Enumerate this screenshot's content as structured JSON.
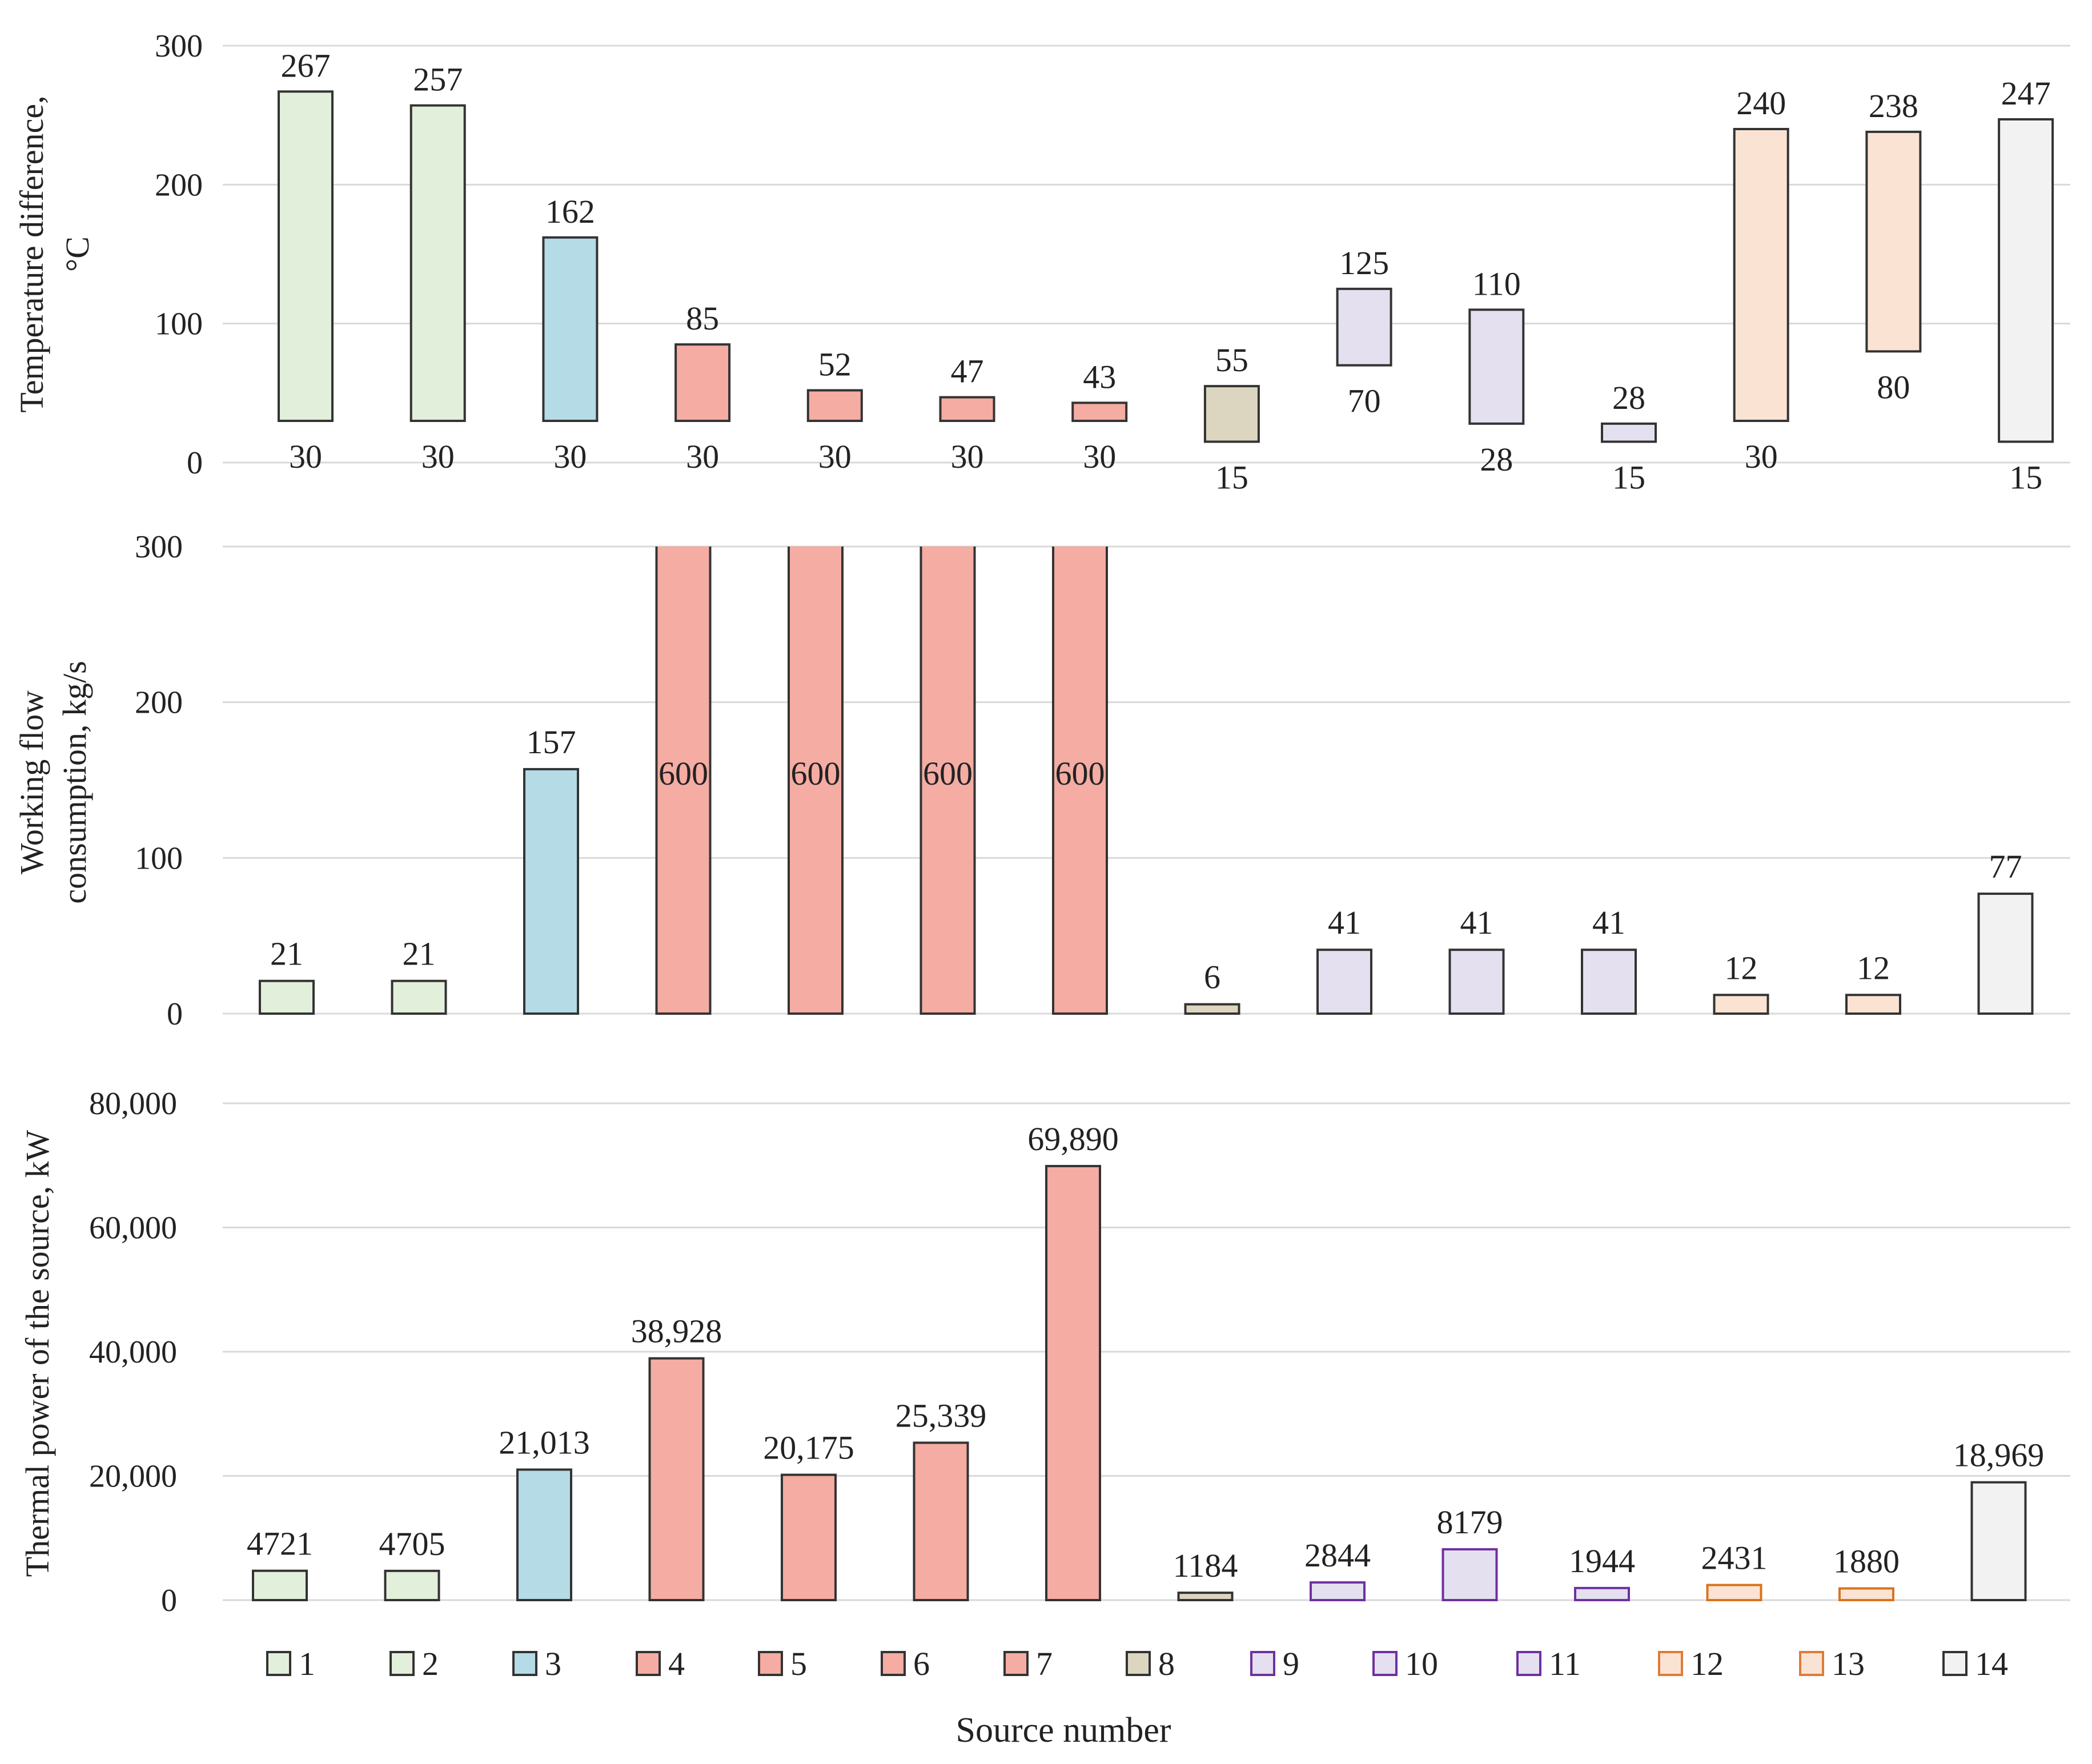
{
  "chart_data": [
    {
      "type": "range-bar",
      "title": "",
      "ylabel": [
        "Temperature difference,",
        "°C"
      ],
      "ylim": [
        0,
        300
      ],
      "yticks": [
        "0",
        "100",
        "200",
        "300"
      ],
      "categories": [
        "1",
        "2",
        "3",
        "4",
        "5",
        "6",
        "7",
        "8",
        "9",
        "10",
        "11",
        "12",
        "13",
        "14"
      ],
      "high": [
        267,
        257,
        162,
        85,
        52,
        47,
        43,
        55,
        125,
        110,
        28,
        240,
        238,
        247
      ],
      "low": [
        30,
        30,
        30,
        30,
        30,
        30,
        30,
        15,
        70,
        28,
        15,
        30,
        80,
        15
      ],
      "high_labels": [
        "267",
        "257",
        "162",
        "85",
        "52",
        "47",
        "43",
        "55",
        "125",
        "110",
        "28",
        "240",
        "238",
        "247"
      ],
      "low_labels": [
        "30",
        "30",
        "30",
        "30",
        "30",
        "30",
        "30",
        "15",
        "70",
        "28",
        "15",
        "30",
        "80",
        "15"
      ]
    },
    {
      "type": "bar",
      "title": "",
      "ylabel": [
        "Working flow",
        "consumption, kg/s"
      ],
      "ylim": [
        0,
        300
      ],
      "yticks": [
        "0",
        "100",
        "200",
        "300"
      ],
      "categories": [
        "1",
        "2",
        "3",
        "4",
        "5",
        "6",
        "7",
        "8",
        "9",
        "10",
        "11",
        "12",
        "13",
        "14"
      ],
      "values": [
        21,
        21,
        157,
        600,
        600,
        600,
        600,
        6,
        41,
        41,
        41,
        12,
        12,
        77
      ],
      "value_labels": [
        "21",
        "21",
        "157",
        "600",
        "600",
        "600",
        "600",
        "6",
        "41",
        "41",
        "41",
        "12",
        "12",
        "77"
      ]
    },
    {
      "type": "bar",
      "title": "",
      "ylabel": [
        "Thermal power of the source, kW"
      ],
      "ylim": [
        0,
        80000
      ],
      "yticks": [
        "0",
        "20,000",
        "40,000",
        "60,000",
        "80,000"
      ],
      "categories": [
        "1",
        "2",
        "3",
        "4",
        "5",
        "6",
        "7",
        "8",
        "9",
        "10",
        "11",
        "12",
        "13",
        "14"
      ],
      "values": [
        4721,
        4705,
        21013,
        38928,
        20175,
        25339,
        69890,
        1184,
        2844,
        8179,
        1944,
        2431,
        1880,
        18969
      ],
      "value_labels": [
        "4721",
        "4705",
        "21,013",
        "38,928",
        "20,175",
        "25,339",
        "69,890",
        "1184",
        "2844",
        "8179",
        "1944",
        "2431",
        "1880",
        "18,969"
      ]
    }
  ],
  "legend": {
    "labels": [
      "1",
      "2",
      "3",
      "4",
      "5",
      "6",
      "7",
      "8",
      "9",
      "10",
      "11",
      "12",
      "13",
      "14"
    ]
  },
  "xlabel": "Source number",
  "colors": {
    "fills": [
      "#e2efda",
      "#e2efda",
      "#b4dbe6",
      "#f4aca3",
      "#f4aca3",
      "#f4aca3",
      "#f4aca3",
      "#dcd6c0",
      "#e4e0ef",
      "#e4e0ef",
      "#e4e0ef",
      "#fbe3d3",
      "#fbe3d3",
      "#f2f2f2"
    ],
    "bottom_strokes": [
      "#333333",
      "#333333",
      "#333333",
      "#333333",
      "#333333",
      "#333333",
      "#333333",
      "#333333",
      "#7030a0",
      "#7030a0",
      "#7030a0",
      "#d9731e",
      "#d9731e",
      "#333333"
    ],
    "legend_strokes": [
      "#333333",
      "#333333",
      "#333333",
      "#333333",
      "#333333",
      "#333333",
      "#333333",
      "#333333",
      "#7030a0",
      "#7030a0",
      "#7030a0",
      "#e07b39",
      "#e07b39",
      "#333333"
    ]
  }
}
